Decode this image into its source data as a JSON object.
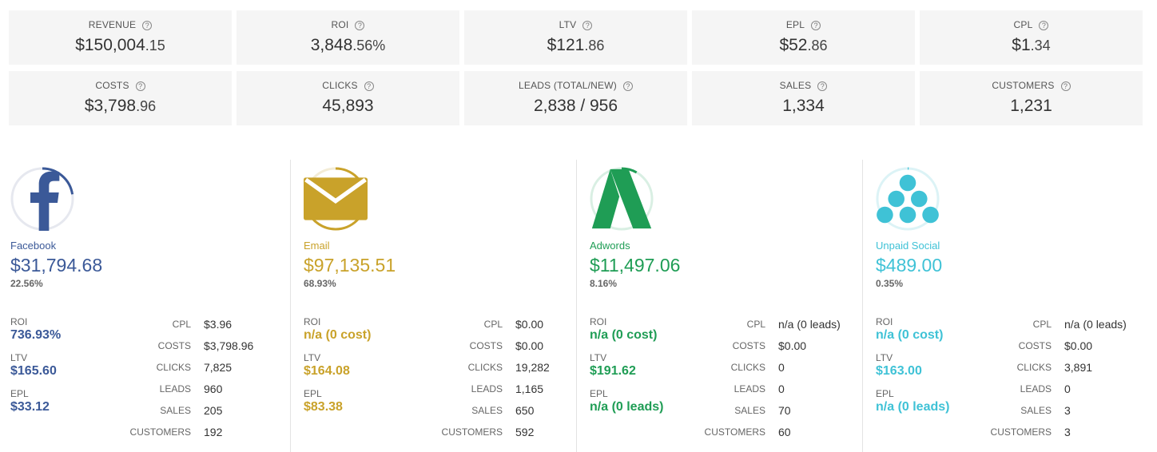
{
  "metrics": [
    {
      "label": "REVENUE",
      "main": "$150,004",
      "dec": ".15"
    },
    {
      "label": "ROI",
      "main": "3,848",
      "dec": ".56%"
    },
    {
      "label": "LTV",
      "main": "$121",
      "dec": ".86"
    },
    {
      "label": "EPL",
      "main": "$52",
      "dec": ".86"
    },
    {
      "label": "CPL",
      "main": "$1",
      "dec": ".34"
    },
    {
      "label": "COSTS",
      "main": "$3,798",
      "dec": ".96"
    },
    {
      "label": "CLICKS",
      "main": "45,893",
      "dec": ""
    },
    {
      "label": "LEADS (TOTAL/NEW)",
      "main": "2,838 / 956",
      "dec": ""
    },
    {
      "label": "SALES",
      "main": "1,334",
      "dec": ""
    },
    {
      "label": "CUSTOMERS",
      "main": "1,231",
      "dec": ""
    }
  ],
  "help_glyph": "?",
  "channels": [
    {
      "name": "Facebook",
      "amount": "$31,794.68",
      "pct": "22.56%",
      "share": 0.2256,
      "icon": "facebook-icon",
      "color": "#3b5998",
      "track": "#e6e8ef",
      "roi_label": "ROI",
      "roi": "736.93%",
      "ltv_label": "LTV",
      "ltv": "$165.60",
      "epl_label": "EPL",
      "epl": "$33.12",
      "kv": [
        {
          "label": "CPL",
          "value": "$3.96"
        },
        {
          "label": "COSTS",
          "value": "$3,798.96"
        },
        {
          "label": "CLICKS",
          "value": "7,825"
        },
        {
          "label": "LEADS",
          "value": "960"
        },
        {
          "label": "SALES",
          "value": "205"
        },
        {
          "label": "CUSTOMERS",
          "value": "192"
        }
      ]
    },
    {
      "name": "Email",
      "amount": "$97,135.51",
      "pct": "68.93%",
      "share": 0.6893,
      "icon": "envelope-icon",
      "color": "#c9a22a",
      "track": "#f3ecd6",
      "roi_label": "ROI",
      "roi": "n/a (0 cost)",
      "ltv_label": "LTV",
      "ltv": "$164.08",
      "epl_label": "EPL",
      "epl": "$83.38",
      "kv": [
        {
          "label": "CPL",
          "value": "$0.00"
        },
        {
          "label": "COSTS",
          "value": "$0.00"
        },
        {
          "label": "CLICKS",
          "value": "19,282"
        },
        {
          "label": "LEADS",
          "value": "1,165"
        },
        {
          "label": "SALES",
          "value": "650"
        },
        {
          "label": "CUSTOMERS",
          "value": "592"
        }
      ]
    },
    {
      "name": "Adwords",
      "amount": "$11,497.06",
      "pct": "8.16%",
      "share": 0.0816,
      "icon": "adwords-icon",
      "color": "#1f9d55",
      "track": "#d9efe3",
      "roi_label": "ROI",
      "roi": "n/a (0 cost)",
      "ltv_label": "LTV",
      "ltv": "$191.62",
      "epl_label": "EPL",
      "epl": "n/a (0 leads)",
      "kv": [
        {
          "label": "CPL",
          "value": "n/a (0 leads)"
        },
        {
          "label": "COSTS",
          "value": "$0.00"
        },
        {
          "label": "CLICKS",
          "value": "0"
        },
        {
          "label": "LEADS",
          "value": "0"
        },
        {
          "label": "SALES",
          "value": "70"
        },
        {
          "label": "CUSTOMERS",
          "value": "60"
        }
      ]
    },
    {
      "name": "Unpaid Social",
      "amount": "$489.00",
      "pct": "0.35%",
      "share": 0.0035,
      "icon": "social-dots-icon",
      "color": "#3fc2d6",
      "track": "#dcf3f6",
      "roi_label": "ROI",
      "roi": "n/a (0 cost)",
      "ltv_label": "LTV",
      "ltv": "$163.00",
      "epl_label": "EPL",
      "epl": "n/a (0 leads)",
      "kv": [
        {
          "label": "CPL",
          "value": "n/a (0 leads)"
        },
        {
          "label": "COSTS",
          "value": "$0.00"
        },
        {
          "label": "CLICKS",
          "value": "3,891"
        },
        {
          "label": "LEADS",
          "value": "0"
        },
        {
          "label": "SALES",
          "value": "3"
        },
        {
          "label": "CUSTOMERS",
          "value": "3"
        }
      ]
    }
  ]
}
